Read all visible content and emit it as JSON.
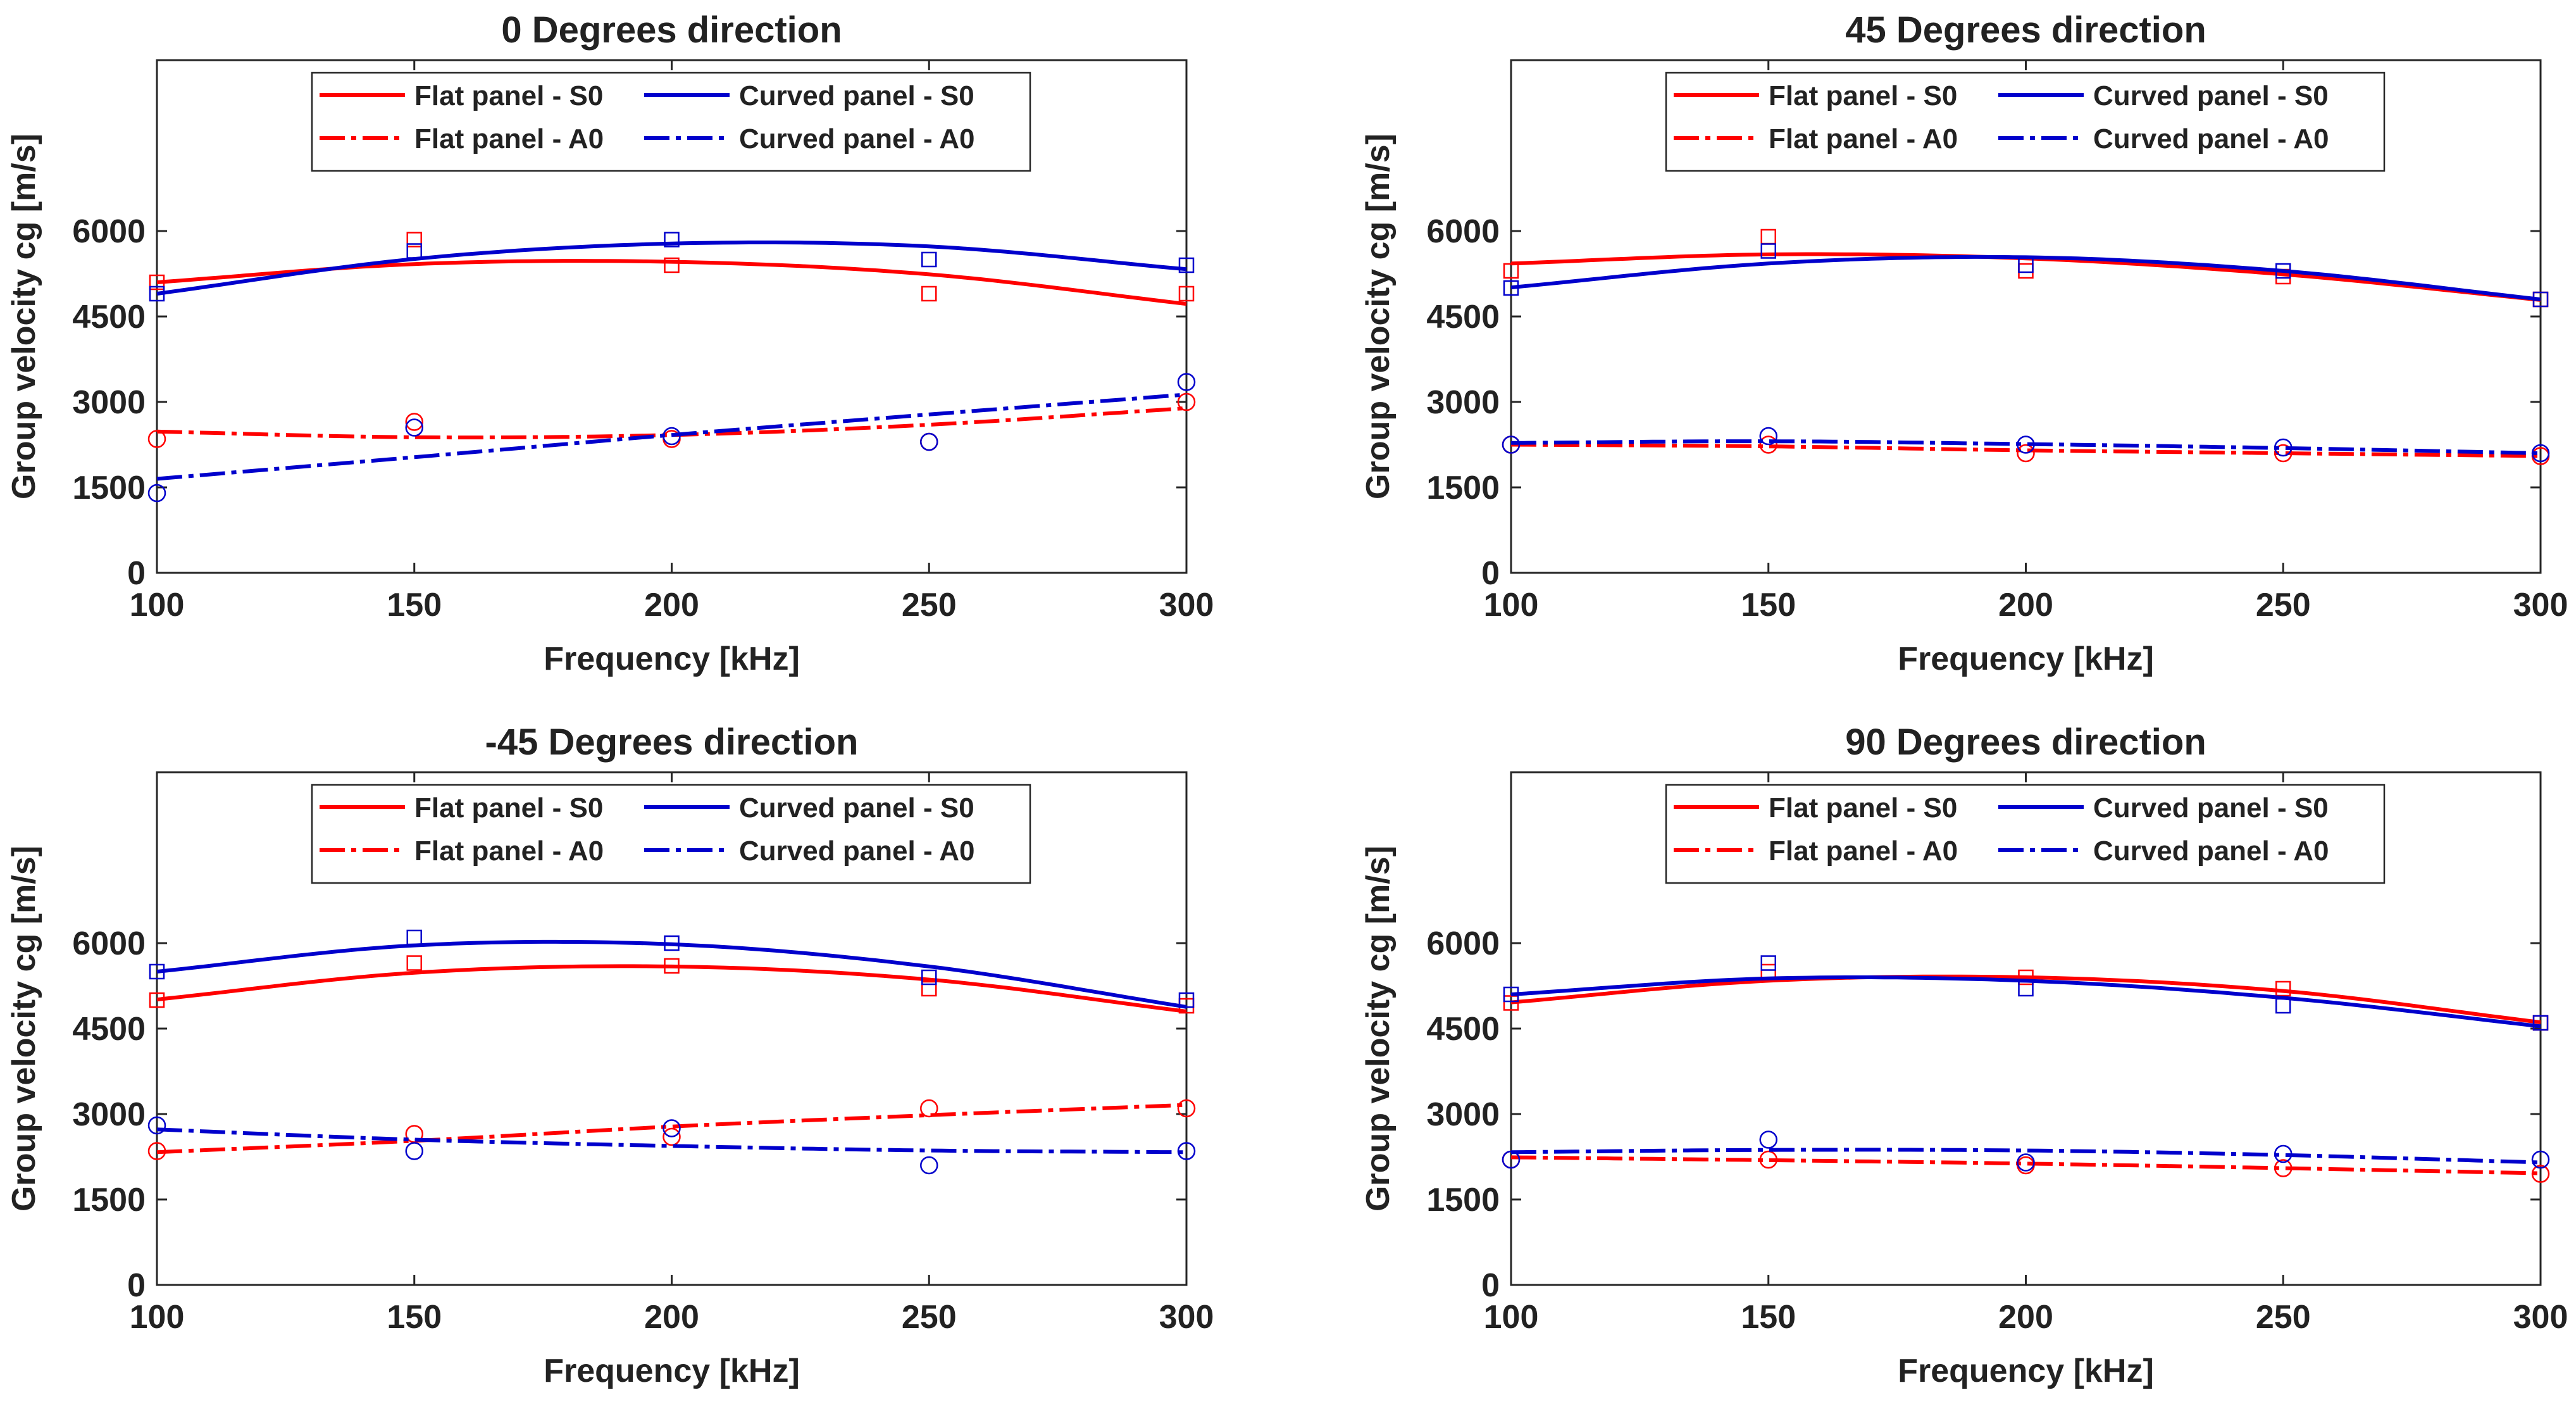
{
  "colors": {
    "flat": "#ff0000",
    "curved": "#0000cc",
    "axis": "#262626",
    "text": "#222222"
  },
  "chart_data": [
    {
      "type": "line",
      "title": "0 Degrees direction",
      "xlabel": "Frequency [kHz]",
      "ylabel": "Group velocity cg [m/s]",
      "xlim": [
        100,
        300
      ],
      "ylim": [
        0,
        9000
      ],
      "xticks": [
        "100",
        "150",
        "200",
        "250",
        "300"
      ],
      "yticks": [
        "0",
        "1500",
        "3000",
        "4500",
        "6000"
      ],
      "legend": {
        "position": "top-center",
        "entries": [
          "Flat panel - S0",
          "Curved panel - S0",
          "Flat panel - A0",
          "Curved panel - A0"
        ]
      },
      "x": [
        100,
        150,
        200,
        250,
        300
      ],
      "series": [
        {
          "name": "Flat panel - S0",
          "color": "flat",
          "style": "solid",
          "marker": "square",
          "points": [
            5100,
            5850,
            5400,
            4900,
            4900
          ],
          "fit": [
            5100,
            5420,
            5460,
            5240,
            4720
          ]
        },
        {
          "name": "Curved panel - S0",
          "color": "curved",
          "style": "solid",
          "marker": "square",
          "points": [
            4900,
            5650,
            5850,
            5500,
            5400
          ],
          "fit": [
            4900,
            5510,
            5780,
            5730,
            5330
          ]
        },
        {
          "name": "Flat panel - A0",
          "color": "flat",
          "style": "dashdot",
          "marker": "circle",
          "points": [
            2350,
            2650,
            2350,
            2300,
            3000
          ],
          "fit": [
            2480,
            2380,
            2420,
            2600,
            2890
          ]
        },
        {
          "name": "Curved panel - A0",
          "color": "curved",
          "style": "dashdot",
          "marker": "circle",
          "points": [
            1400,
            2550,
            2400,
            2300,
            3350
          ],
          "fit": [
            1650,
            2030,
            2420,
            2780,
            3130
          ]
        }
      ]
    },
    {
      "type": "line",
      "title": "45 Degrees direction",
      "xlabel": "Frequency [kHz]",
      "ylabel": "Group velocity cg [m/s]",
      "xlim": [
        100,
        300
      ],
      "ylim": [
        0,
        9000
      ],
      "xticks": [
        "100",
        "150",
        "200",
        "250",
        "300"
      ],
      "yticks": [
        "0",
        "1500",
        "3000",
        "4500",
        "6000"
      ],
      "legend": {
        "position": "top-center",
        "entries": [
          "Flat panel - S0",
          "Curved panel - S0",
          "Flat panel - A0",
          "Curved panel - A0"
        ]
      },
      "x": [
        100,
        150,
        200,
        250,
        300
      ],
      "series": [
        {
          "name": "Flat panel - S0",
          "color": "flat",
          "style": "solid",
          "marker": "square",
          "points": [
            5300,
            5900,
            5300,
            5200,
            4800
          ],
          "fit": [
            5430,
            5590,
            5520,
            5240,
            4790
          ]
        },
        {
          "name": "Curved panel - S0",
          "color": "curved",
          "style": "solid",
          "marker": "square",
          "points": [
            5000,
            5650,
            5400,
            5300,
            4800
          ],
          "fit": [
            5010,
            5430,
            5540,
            5300,
            4800
          ]
        },
        {
          "name": "Flat panel - A0",
          "color": "flat",
          "style": "dashdot",
          "marker": "circle",
          "points": [
            2250,
            2250,
            2100,
            2100,
            2050
          ],
          "fit": [
            2250,
            2220,
            2150,
            2100,
            2050
          ]
        },
        {
          "name": "Curved panel - A0",
          "color": "curved",
          "style": "dashdot",
          "marker": "circle",
          "points": [
            2250,
            2400,
            2250,
            2200,
            2100
          ],
          "fit": [
            2280,
            2310,
            2260,
            2190,
            2100
          ]
        }
      ]
    },
    {
      "type": "line",
      "title": "-45 Degrees direction",
      "xlabel": "Frequency [kHz]",
      "ylabel": "Group velocity cg [m/s]",
      "xlim": [
        100,
        300
      ],
      "ylim": [
        0,
        9000
      ],
      "xticks": [
        "100",
        "150",
        "200",
        "250",
        "300"
      ],
      "yticks": [
        "0",
        "1500",
        "3000",
        "4500",
        "6000"
      ],
      "legend": {
        "position": "top-center",
        "entries": [
          "Flat panel - S0",
          "Curved panel - S0",
          "Flat panel - A0",
          "Curved panel - A0"
        ]
      },
      "x": [
        100,
        150,
        200,
        250,
        300
      ],
      "series": [
        {
          "name": "Flat panel - S0",
          "color": "flat",
          "style": "solid",
          "marker": "square",
          "points": [
            5000,
            5650,
            5600,
            5200,
            4900
          ],
          "fit": [
            5010,
            5480,
            5590,
            5360,
            4800
          ]
        },
        {
          "name": "Curved panel - S0",
          "color": "curved",
          "style": "solid",
          "marker": "square",
          "points": [
            5500,
            6100,
            6000,
            5400,
            5000
          ],
          "fit": [
            5500,
            5960,
            5980,
            5590,
            4880
          ]
        },
        {
          "name": "Flat panel - A0",
          "color": "flat",
          "style": "dashdot",
          "marker": "circle",
          "points": [
            2350,
            2650,
            2600,
            3100,
            3100
          ],
          "fit": [
            2330,
            2530,
            2780,
            2980,
            3160
          ]
        },
        {
          "name": "Curved panel - A0",
          "color": "curved",
          "style": "dashdot",
          "marker": "circle",
          "points": [
            2800,
            2350,
            2750,
            2100,
            2350
          ],
          "fit": [
            2730,
            2550,
            2440,
            2360,
            2330
          ]
        }
      ]
    },
    {
      "type": "line",
      "title": "90 Degrees direction",
      "xlabel": "Frequency [kHz]",
      "ylabel": "Group velocity cg [m/s]",
      "xlim": [
        100,
        300
      ],
      "ylim": [
        0,
        9000
      ],
      "xticks": [
        "100",
        "150",
        "200",
        "250",
        "300"
      ],
      "yticks": [
        "0",
        "1500",
        "3000",
        "4500",
        "6000"
      ],
      "legend": {
        "position": "top-center",
        "entries": [
          "Flat panel - S0",
          "Curved panel - S0",
          "Flat panel - A0",
          "Curved panel - A0"
        ]
      },
      "x": [
        100,
        150,
        200,
        250,
        300
      ],
      "series": [
        {
          "name": "Flat panel - S0",
          "color": "flat",
          "style": "solid",
          "marker": "square",
          "points": [
            4950,
            5500,
            5400,
            5200,
            4600
          ],
          "fit": [
            4960,
            5340,
            5400,
            5160,
            4610
          ]
        },
        {
          "name": "Curved panel - S0",
          "color": "curved",
          "style": "solid",
          "marker": "square",
          "points": [
            5100,
            5650,
            5200,
            4900,
            4600
          ],
          "fit": [
            5100,
            5380,
            5340,
            5040,
            4540
          ]
        },
        {
          "name": "Flat panel - A0",
          "color": "flat",
          "style": "dashdot",
          "marker": "circle",
          "points": [
            2200,
            2200,
            2100,
            2050,
            1950
          ],
          "fit": [
            2240,
            2190,
            2130,
            2050,
            1960
          ]
        },
        {
          "name": "Curved panel - A0",
          "color": "curved",
          "style": "dashdot",
          "marker": "circle",
          "points": [
            2200,
            2550,
            2150,
            2300,
            2200
          ],
          "fit": [
            2330,
            2370,
            2360,
            2280,
            2150
          ]
        }
      ]
    }
  ]
}
